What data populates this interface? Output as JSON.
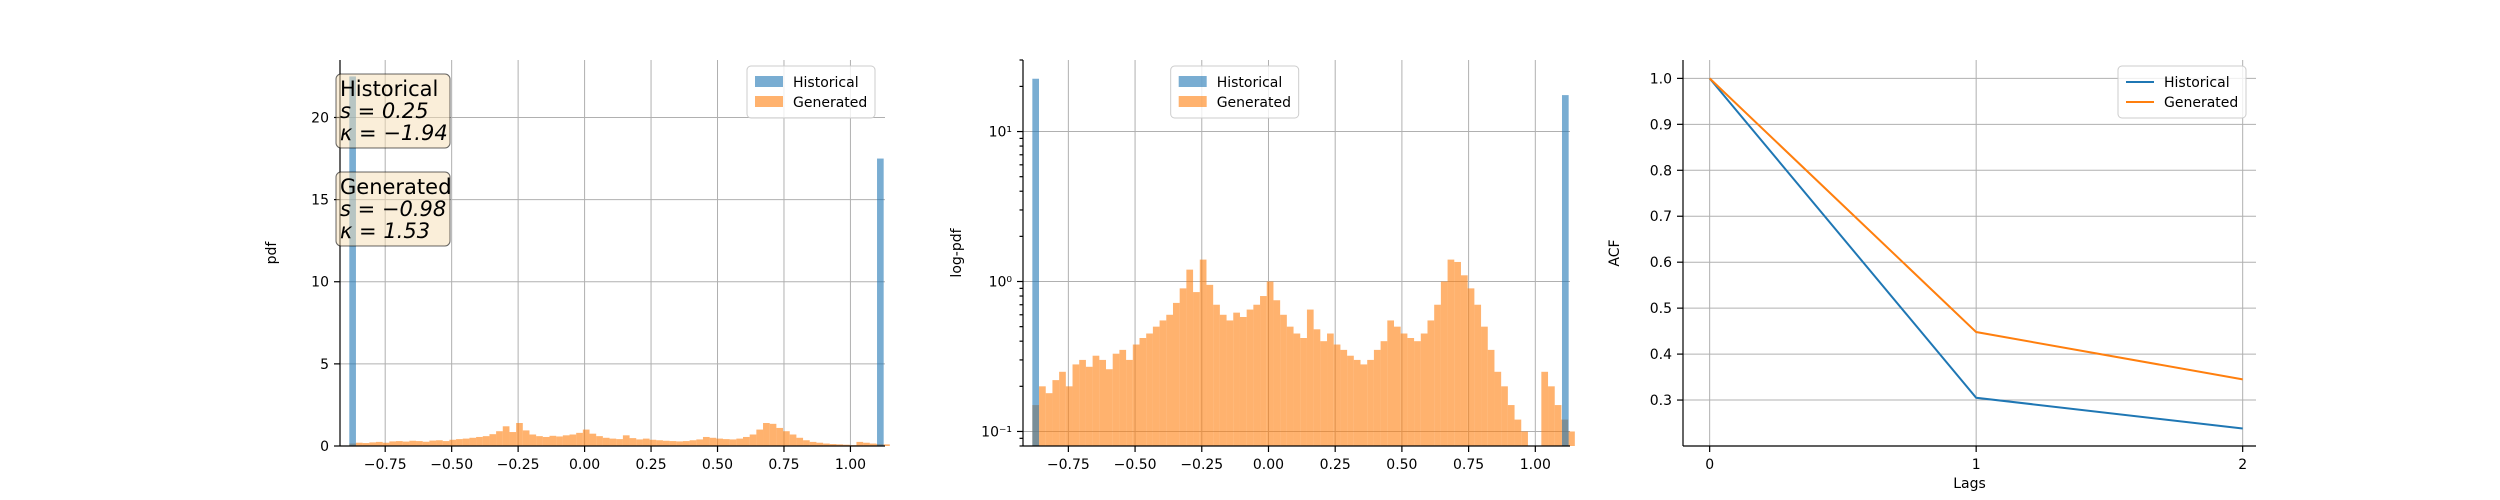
{
  "chart_data": [
    {
      "type": "bar",
      "subtype": "histogram",
      "xlabel": "",
      "ylabel": "pdf",
      "xlim": [
        -0.92,
        1.13
      ],
      "ylim": [
        0,
        23.5
      ],
      "xticks": [
        -0.75,
        -0.5,
        -0.25,
        0.0,
        0.25,
        0.5,
        0.75,
        1.0
      ],
      "xtick_labels": [
        "−0.75",
        "−0.50",
        "−0.25",
        "0.00",
        "0.25",
        "0.50",
        "0.75",
        "1.00"
      ],
      "yticks": [
        0,
        5,
        10,
        15,
        20
      ],
      "ytick_labels": [
        "0",
        "5",
        "10",
        "15",
        "20"
      ],
      "grid": true,
      "legend_position": "top-right",
      "series": [
        {
          "name": "Historical",
          "color": "#1f77b4",
          "bin_edges": [
            -0.885,
            -0.86,
            1.1,
            1.125
          ],
          "bins": [
            {
              "x0": -0.885,
              "x1": -0.86,
              "h": 22.5
            },
            {
              "x0": 1.1,
              "x1": 1.125,
              "h": 17.5
            }
          ]
        },
        {
          "name": "Generated",
          "color": "#ff7f0e",
          "bin_start": -0.885,
          "bin_width": 0.0251,
          "heights": [
            0.15,
            0.2,
            0.18,
            0.22,
            0.25,
            0.2,
            0.28,
            0.3,
            0.27,
            0.32,
            0.3,
            0.26,
            0.33,
            0.35,
            0.3,
            0.38,
            0.42,
            0.45,
            0.5,
            0.55,
            0.6,
            0.72,
            0.9,
            1.2,
            0.85,
            1.4,
            0.95,
            0.7,
            0.6,
            0.55,
            0.62,
            0.58,
            0.65,
            0.7,
            0.8,
            1.0,
            0.75,
            0.6,
            0.5,
            0.45,
            0.42,
            0.65,
            0.48,
            0.4,
            0.45,
            0.38,
            0.35,
            0.32,
            0.3,
            0.28,
            0.3,
            0.35,
            0.4,
            0.55,
            0.5,
            0.45,
            0.42,
            0.4,
            0.45,
            0.55,
            0.7,
            1.0,
            1.4,
            1.35,
            1.1,
            0.9,
            0.7,
            0.5,
            0.35,
            0.25,
            0.2,
            0.15,
            0.12,
            0.1,
            0.08,
            0.05,
            0.25,
            0.2,
            0.15,
            0.12,
            0.1
          ]
        }
      ],
      "annotations": [
        {
          "title": "Historical",
          "lines": [
            "s = 0.25",
            "κ = −1.94"
          ]
        },
        {
          "title": "Generated",
          "lines": [
            "s = −0.98",
            "κ = 1.53"
          ]
        }
      ]
    },
    {
      "type": "bar",
      "subtype": "histogram",
      "xlabel": "",
      "ylabel": "log-pdf",
      "yscale": "log",
      "xlim": [
        -0.92,
        1.13
      ],
      "ylim": [
        0.08,
        30
      ],
      "xticks": [
        -0.75,
        -0.5,
        -0.25,
        0.0,
        0.25,
        0.5,
        0.75,
        1.0
      ],
      "xtick_labels": [
        "−0.75",
        "−0.50",
        "−0.25",
        "0.00",
        "0.25",
        "0.50",
        "0.75",
        "1.00"
      ],
      "yticks": [
        0.1,
        1,
        10
      ],
      "ytick_labels": [
        "10⁻¹",
        "10⁰",
        "10¹"
      ],
      "grid": true,
      "legend_position": "top-center",
      "series": [
        {
          "name": "Historical",
          "color": "#1f77b4",
          "bins": [
            {
              "x0": -0.885,
              "x1": -0.86,
              "h": 22.5
            },
            {
              "x0": 1.1,
              "x1": 1.125,
              "h": 17.5
            }
          ]
        },
        {
          "name": "Generated",
          "color": "#ff7f0e",
          "bin_start": -0.885,
          "bin_width": 0.0251,
          "heights": [
            0.15,
            0.2,
            0.18,
            0.22,
            0.25,
            0.2,
            0.28,
            0.3,
            0.27,
            0.32,
            0.3,
            0.26,
            0.33,
            0.35,
            0.3,
            0.38,
            0.42,
            0.45,
            0.5,
            0.55,
            0.6,
            0.72,
            0.9,
            1.2,
            0.85,
            1.4,
            0.95,
            0.7,
            0.6,
            0.55,
            0.62,
            0.58,
            0.65,
            0.7,
            0.8,
            1.0,
            0.75,
            0.6,
            0.5,
            0.45,
            0.42,
            0.65,
            0.48,
            0.4,
            0.45,
            0.38,
            0.35,
            0.32,
            0.3,
            0.28,
            0.3,
            0.35,
            0.4,
            0.55,
            0.5,
            0.45,
            0.42,
            0.4,
            0.45,
            0.55,
            0.7,
            1.0,
            1.4,
            1.35,
            1.1,
            0.9,
            0.7,
            0.5,
            0.35,
            0.25,
            0.2,
            0.15,
            0.12,
            0.1,
            0.08,
            0.05,
            0.25,
            0.2,
            0.15,
            0.12,
            0.1
          ]
        }
      ]
    },
    {
      "type": "line",
      "xlabel": "Lags",
      "ylabel": "ACF",
      "xlim": [
        -0.1,
        2.05
      ],
      "ylim": [
        0.2,
        1.04
      ],
      "xticks": [
        0,
        1,
        2
      ],
      "xtick_labels": [
        "0",
        "1",
        "2"
      ],
      "yticks": [
        0.3,
        0.4,
        0.5,
        0.6,
        0.7,
        0.8,
        0.9,
        1.0
      ],
      "ytick_labels": [
        "0.3",
        "0.4",
        "0.5",
        "0.6",
        "0.7",
        "0.8",
        "0.9",
        "1.0"
      ],
      "grid": true,
      "legend_position": "top-right",
      "x": [
        0,
        1,
        2
      ],
      "series": [
        {
          "name": "Historical",
          "color": "#1f77b4",
          "values": [
            1.0,
            0.305,
            0.238
          ]
        },
        {
          "name": "Generated",
          "color": "#ff7f0e",
          "values": [
            1.0,
            0.448,
            0.345
          ]
        }
      ]
    }
  ]
}
